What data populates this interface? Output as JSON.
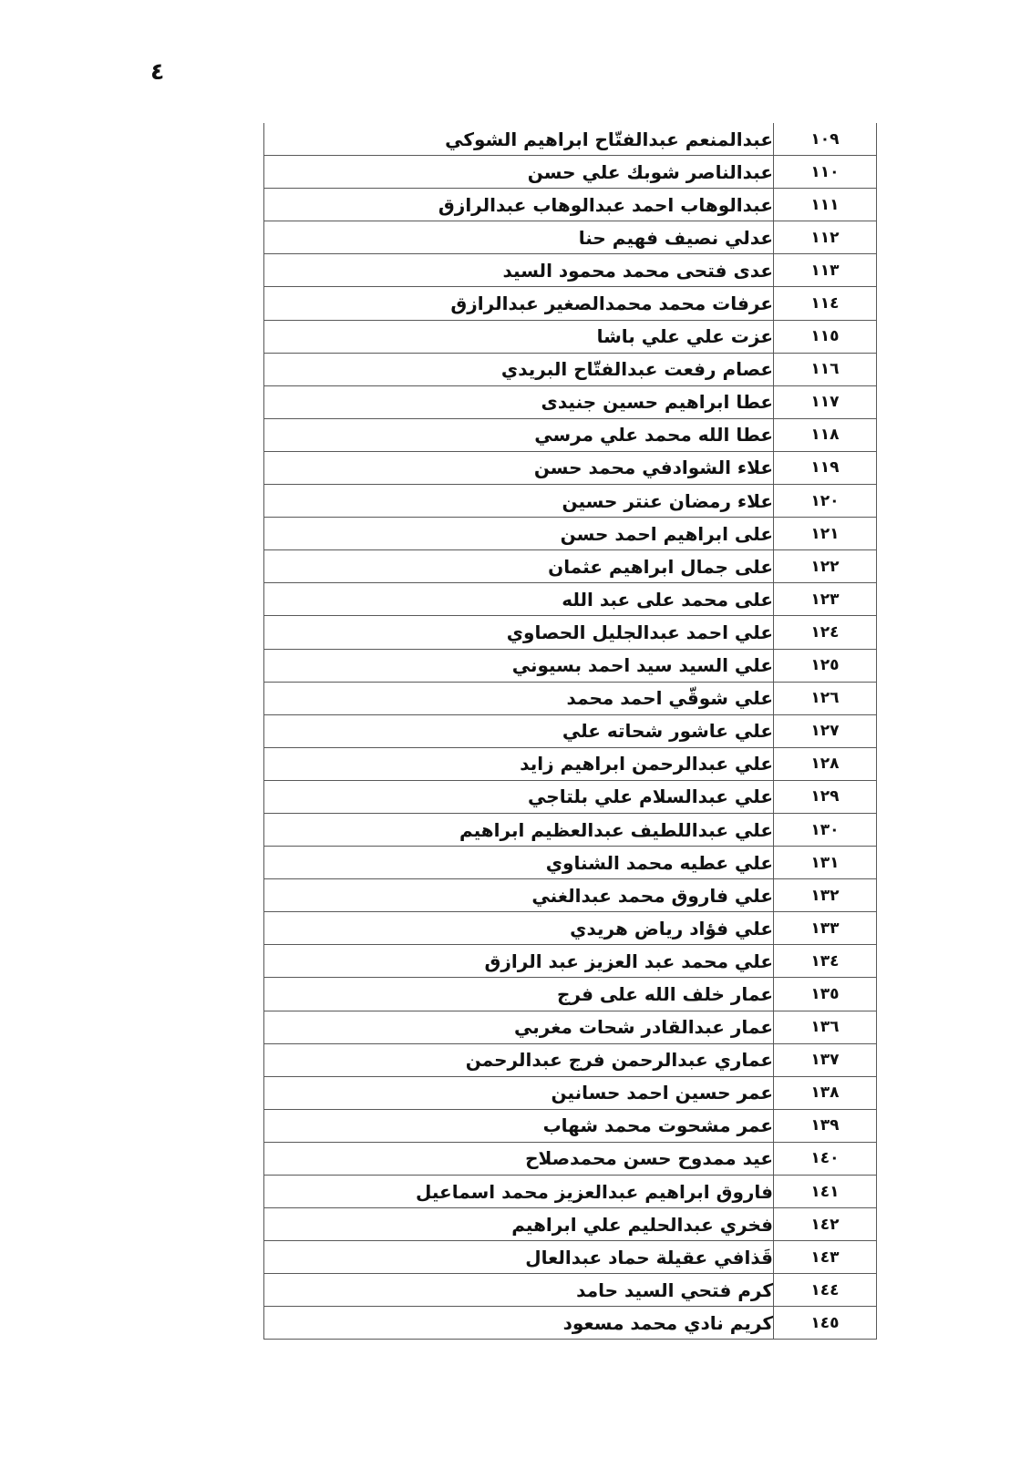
{
  "page": {
    "number": "٤"
  },
  "colors": {
    "background": "#ffffff",
    "text": "#111111",
    "border": "#595959"
  },
  "table": {
    "rows": [
      {
        "no": "١٠٩",
        "name": "عبدالمنعم عبدالفتّاح ابراهيم الشوكي"
      },
      {
        "no": "١١٠",
        "name": "عبدالناصر شوبك علي حسن"
      },
      {
        "no": "١١١",
        "name": "عبدالوهاب احمد عبدالوهاب عبدالرازق"
      },
      {
        "no": "١١٢",
        "name": "عدلي نصيف فهيم حنا"
      },
      {
        "no": "١١٣",
        "name": "عدى فتحى محمد محمود السيد"
      },
      {
        "no": "١١٤",
        "name": "عرفات محمد محمدالصغير عبدالرازق"
      },
      {
        "no": "١١٥",
        "name": "عزت علي علي باشا"
      },
      {
        "no": "١١٦",
        "name": "عصام رفعت عبدالفتّاح البريدي"
      },
      {
        "no": "١١٧",
        "name": "عطا ابراهيم حسين جنيدى"
      },
      {
        "no": "١١٨",
        "name": "عطا الله محمد علي مرسي"
      },
      {
        "no": "١١٩",
        "name": "علاء الشوادفي محمد حسن"
      },
      {
        "no": "١٢٠",
        "name": "علاء رمضان عنتر حسين"
      },
      {
        "no": "١٢١",
        "name": "على ابراهيم احمد حسن"
      },
      {
        "no": "١٢٢",
        "name": "على جمال ابراهيم عثمان"
      },
      {
        "no": "١٢٣",
        "name": "على محمد على عبد الله"
      },
      {
        "no": "١٢٤",
        "name": "علي احمد عبدالجليل الحصاوي"
      },
      {
        "no": "١٢٥",
        "name": "علي السيد سيد احمد بسيوني"
      },
      {
        "no": "١٢٦",
        "name": "علي شوقّي احمد محمد"
      },
      {
        "no": "١٢٧",
        "name": "علي عاشور شحاته علي"
      },
      {
        "no": "١٢٨",
        "name": "علي عبدالرحمن ابراهيم زايد"
      },
      {
        "no": "١٢٩",
        "name": "علي عبدالسلام علي بلتاجي"
      },
      {
        "no": "١٣٠",
        "name": "علي عبداللطيف عبدالعظيم ابراهيم"
      },
      {
        "no": "١٣١",
        "name": "علي عطيه محمد الشناوي"
      },
      {
        "no": "١٣٢",
        "name": "علي فاروق محمد عبدالغني"
      },
      {
        "no": "١٣٣",
        "name": "علي فؤاد رياض هريدي"
      },
      {
        "no": "١٣٤",
        "name": "علي محمد عبد العزيز عبد الرازق"
      },
      {
        "no": "١٣٥",
        "name": "عمار خلف الله على فرج"
      },
      {
        "no": "١٣٦",
        "name": "عمار عبدالقادر شحات مغربي"
      },
      {
        "no": "١٣٧",
        "name": "عماري عبدالرحمن فرج عبدالرحمن"
      },
      {
        "no": "١٣٨",
        "name": "عمر حسين احمد حسانين"
      },
      {
        "no": "١٣٩",
        "name": "عمر مشحوت محمد شهاب"
      },
      {
        "no": "١٤٠",
        "name": "عيد ممدوح حسن محمدصلاح"
      },
      {
        "no": "١٤١",
        "name": "فاروق ابراهيم عبدالعزيز محمد اسماعيل"
      },
      {
        "no": "١٤٢",
        "name": "فخري عبدالحليم علي ابراهيم"
      },
      {
        "no": "١٤٣",
        "name": "قَذافي عقيلة حماد عبدالعال"
      },
      {
        "no": "١٤٤",
        "name": "كرم فتحي السيد حامد"
      },
      {
        "no": "١٤٥",
        "name": "كريم نادي محمد مسعود"
      }
    ]
  }
}
